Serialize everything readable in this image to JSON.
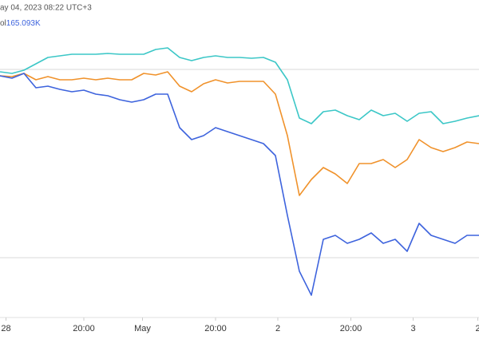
{
  "chart_data": {
    "type": "line",
    "date_label": "ay 04, 2023 08:22 UTC+3",
    "volume_label": "ol",
    "volume_value": "165.093K",
    "x": [
      0,
      1,
      2,
      3,
      4,
      5,
      6,
      7,
      8,
      9,
      10,
      11,
      12,
      13,
      14,
      15,
      16,
      17,
      18,
      19,
      20,
      21,
      22,
      23,
      24,
      25,
      26,
      27,
      28,
      29,
      30,
      31,
      32,
      33,
      34,
      35,
      36,
      37,
      38,
      39,
      40
    ],
    "xlim": [
      0,
      40
    ],
    "xticks": [
      {
        "value": 0.5,
        "label": "28"
      },
      {
        "value": 7,
        "label": "20:00"
      },
      {
        "value": 11.9,
        "label": "May"
      },
      {
        "value": 18,
        "label": "20:00"
      },
      {
        "value": 23.2,
        "label": "2"
      },
      {
        "value": 29.3,
        "label": "20:00"
      },
      {
        "value": 34.5,
        "label": "3"
      },
      {
        "value": 39.9,
        "label": "2"
      }
    ],
    "ylim": [
      0,
      450
    ],
    "series": [
      {
        "color": "#3cc7c7",
        "values": [
          360,
          358,
          362,
          370,
          378,
          380,
          382,
          382,
          382,
          383,
          382,
          382,
          382,
          388,
          390,
          378,
          374,
          378,
          380,
          378,
          378,
          377,
          378,
          372,
          350,
          302,
          295,
          310,
          312,
          305,
          300,
          312,
          305,
          308,
          298,
          308,
          310,
          295,
          298,
          302,
          305
        ]
      },
      {
        "color": "#f0922b",
        "values": [
          355,
          354,
          358,
          350,
          354,
          350,
          350,
          352,
          350,
          352,
          350,
          350,
          358,
          356,
          360,
          342,
          335,
          345,
          350,
          346,
          348,
          348,
          348,
          332,
          280,
          205,
          225,
          240,
          232,
          220,
          245,
          245,
          250,
          240,
          250,
          275,
          265,
          260,
          265,
          272,
          270
        ]
      },
      {
        "color": "#3d63dd",
        "values": [
          355,
          352,
          358,
          340,
          342,
          338,
          335,
          337,
          332,
          330,
          325,
          322,
          325,
          332,
          332,
          290,
          275,
          280,
          290,
          285,
          280,
          275,
          270,
          255,
          180,
          110,
          80,
          150,
          155,
          145,
          150,
          158,
          145,
          150,
          135,
          170,
          155,
          150,
          145,
          155,
          155
        ]
      }
    ]
  }
}
